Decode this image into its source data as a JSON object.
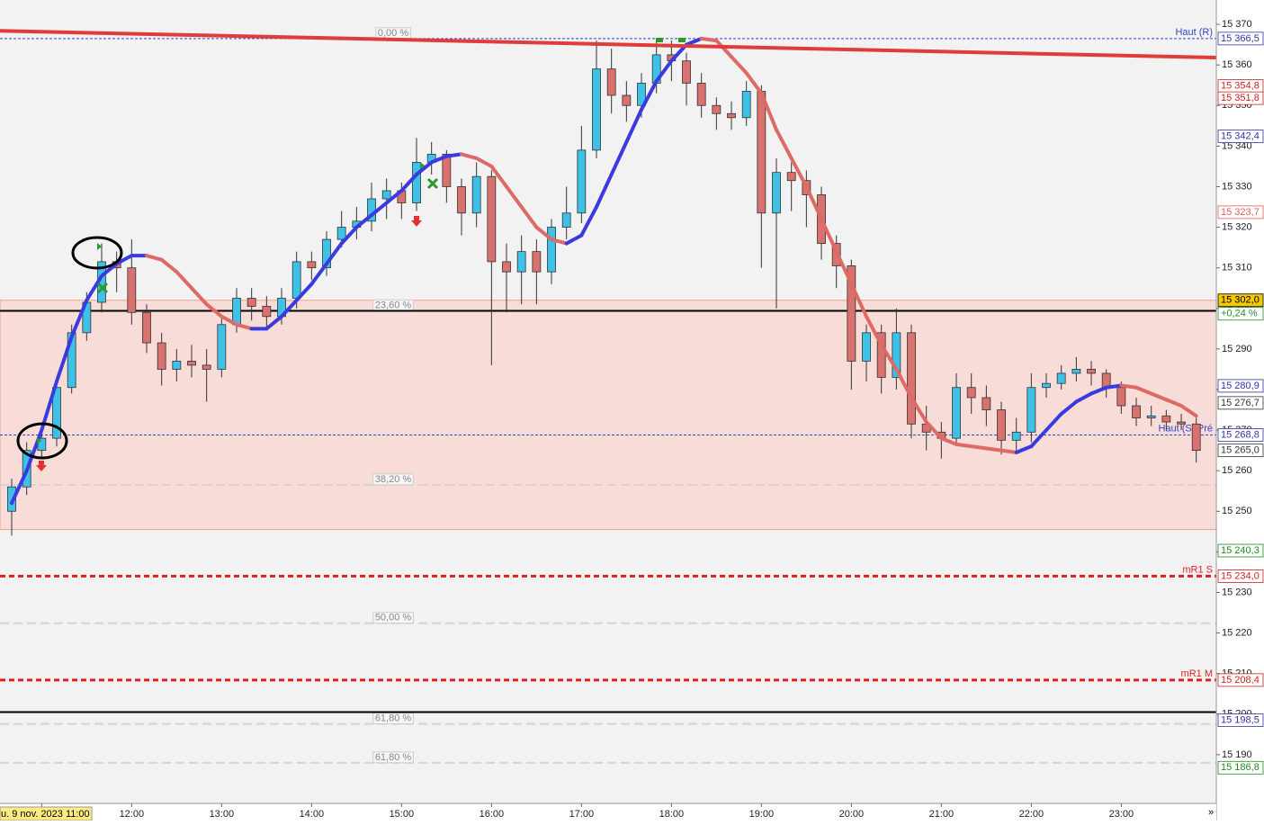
{
  "chart_data": {
    "type": "candlestick",
    "categories": [
      null,
      null,
      "u. 9 nov. 2023 11:00",
      null,
      null,
      null,
      null,
      null,
      "12:00",
      null,
      null,
      null,
      null,
      null,
      "13:00",
      null,
      null,
      null,
      null,
      null,
      "14:00",
      null,
      null,
      null,
      null,
      null,
      "15:00",
      null,
      null,
      null,
      null,
      null,
      "16:00",
      null,
      null,
      null,
      null,
      null,
      "17:00",
      null,
      null,
      null,
      null,
      null,
      "18:00",
      null,
      null,
      null,
      null,
      null,
      "19:00",
      null,
      null,
      null,
      null,
      null,
      "20:00",
      null,
      null,
      null,
      null,
      null,
      "21:00",
      null,
      null,
      null,
      null,
      null,
      "22:00",
      null,
      null,
      null,
      null,
      null,
      "23:00",
      null,
      null,
      null,
      null,
      null
    ],
    "candles": {
      "open": [
        15250,
        15256,
        15265,
        15268,
        15280.5,
        15294,
        15301.5,
        15311.5,
        15310,
        15299,
        15291.5,
        15285,
        15287,
        15286,
        15285,
        15296,
        15302.5,
        15300.5,
        15298,
        15302.5,
        15311.5,
        15310,
        15317,
        15320,
        15321.5,
        15327,
        15329,
        15326,
        15336,
        15338,
        15330,
        15323.5,
        15332.5,
        15311.5,
        15309,
        15314,
        15309,
        15320,
        15323.5,
        15339,
        15359,
        15352.5,
        15350,
        15355.5,
        15362.5,
        15361,
        15355.5,
        15350,
        15348,
        15347,
        15353.5,
        15323.5,
        15333.5,
        15331.5,
        15328,
        15316,
        15310.5,
        15287,
        15294,
        15283,
        15294,
        15271.5,
        15269.5,
        15268,
        15280.5,
        15278,
        15275,
        15267.5,
        15269.5,
        15280.5,
        15281.5,
        15284,
        15285,
        15284,
        15280.5,
        15276,
        15273,
        15273.5,
        15272,
        15271.5
      ],
      "high": [
        15258,
        15267,
        15271,
        15283,
        15296,
        15304,
        15316,
        15314,
        15317,
        15301,
        15294,
        15290,
        15291,
        15290,
        15298,
        15305,
        15305,
        15303,
        15305,
        15314,
        15314,
        15319,
        15324,
        15325,
        15331,
        15332,
        15331,
        15342,
        15341,
        15339,
        15332,
        15336,
        15334,
        15316,
        15318,
        15317,
        15322,
        15330,
        15345,
        15366,
        15364,
        15356,
        15358,
        15366.5,
        15366,
        15363,
        15358,
        15352,
        15351,
        15356,
        15355,
        15337,
        15336,
        15334,
        15330,
        15318,
        15312,
        15296,
        15296,
        15300,
        15296,
        15276,
        15272,
        15284,
        15284,
        15281,
        15277,
        15273,
        15284,
        15284,
        15286,
        15288,
        15287,
        15285,
        15282,
        15278,
        15276,
        15275,
        15274,
        15273
      ],
      "low": [
        15244,
        15254,
        15263,
        15266,
        15279,
        15292,
        15299,
        15304,
        15296,
        15289,
        15281,
        15282,
        15283,
        15277,
        15283,
        15294,
        15297,
        15295,
        15296,
        15300,
        15307,
        15308,
        15315,
        15317,
        15319,
        15322,
        15322,
        15324,
        15333,
        15326,
        15318,
        15320,
        15286,
        15299,
        15301,
        15301,
        15306,
        15317,
        15321,
        15337,
        15348,
        15346,
        15347,
        15353,
        15356,
        15350,
        15347,
        15344,
        15344,
        15345,
        15310,
        15300,
        15324,
        15320,
        15312,
        15305,
        15280,
        15282,
        15279,
        15280,
        15268,
        15265,
        15263,
        15266,
        15274,
        15271,
        15264,
        15265,
        15267,
        15278,
        15280,
        15282,
        15281,
        15278,
        15274,
        15271,
        15271,
        15270,
        15270,
        15262
      ],
      "close": [
        15256,
        15265,
        15268,
        15280.5,
        15294,
        15301.5,
        15311.5,
        15310,
        15299,
        15291.5,
        15285,
        15287,
        15286,
        15285,
        15296,
        15302.5,
        15300.5,
        15298,
        15302.5,
        15311.5,
        15310,
        15317,
        15320,
        15321.5,
        15327,
        15329,
        15326,
        15336,
        15338,
        15330,
        15323.5,
        15332.5,
        15311.5,
        15309,
        15314,
        15309,
        15320,
        15323.5,
        15339,
        15359,
        15352.5,
        15350,
        15355.5,
        15362.5,
        15361,
        15355.5,
        15350,
        15348,
        15347,
        15353.5,
        15323.5,
        15333.5,
        15331.5,
        15328,
        15316,
        15310.5,
        15287,
        15294,
        15283,
        15294,
        15271.5,
        15269.5,
        15268,
        15280.5,
        15278,
        15275,
        15267.5,
        15269.5,
        15280.5,
        15281.5,
        15284,
        15285,
        15284,
        15280.5,
        15276,
        15273,
        15273.5,
        15272,
        15271.5,
        15265
      ],
      "up_color": "#3ec1e6",
      "down_color": "#d9716f"
    },
    "moving_average": {
      "values": [
        15252,
        15260,
        15270,
        15282,
        15293,
        15302,
        15308,
        15311,
        15313,
        15313,
        15312,
        15309,
        15305,
        15301,
        15298,
        15296,
        15295,
        15295,
        15298,
        15302,
        15306,
        15311,
        15316,
        15320,
        15323,
        15326,
        15329,
        15333,
        15336,
        15337.5,
        15338,
        15337,
        15335,
        15330,
        15325,
        15320,
        15317,
        15316,
        15318,
        15325,
        15333,
        15341,
        15349,
        15356,
        15361,
        15365,
        15366.5,
        15366,
        15362,
        15358,
        15353,
        15344,
        15337,
        15330,
        15322,
        15314,
        15306,
        15298,
        15291,
        15285,
        15278,
        15272,
        15268,
        15266.5,
        15266,
        15265.5,
        15265,
        15264.5,
        15266,
        15270,
        15274,
        15277,
        15279,
        15280.5,
        15281,
        15280.5,
        15279,
        15277.5,
        15276,
        15273.5
      ],
      "rising_color": "#3a3ae0",
      "falling_color": "#de6a66"
    },
    "trendline": {
      "values": [
        15368.4,
        15361.8
      ],
      "color": "#e03c3c"
    },
    "zone": {
      "range": [
        15245.5,
        15302
      ],
      "color": "#f7dcd8"
    },
    "lines": [
      {
        "name": "Haut (R)",
        "value": 15366.5,
        "color": "#3344cc",
        "dash": "3,2",
        "width": 1
      },
      {
        "name": "Haut (S, Pré",
        "value": 15268.8,
        "color": "#3344cc",
        "dash": "3,2",
        "width": 1
      },
      {
        "name": "mR1 S",
        "value": 15234,
        "color": "#e02020",
        "dash": "6,4",
        "width": 3
      },
      {
        "name": "mR1 M",
        "value": 15208.4,
        "color": "#e02020",
        "dash": "6,4",
        "width": 3
      }
    ],
    "black_lines": [
      15299.4,
      15200.5
    ],
    "fibonacci": [
      {
        "label": "0,00 %",
        "value": 15366.5,
        "line": false
      },
      {
        "label": "23,60 %",
        "value": 15299.4,
        "line": false
      },
      {
        "label": "38,20 %",
        "value": 15256.5,
        "line": true
      },
      {
        "label": "50,00 %",
        "value": 15222.4,
        "line": true
      },
      {
        "label": "61,80 %",
        "value": 15197.6,
        "line": true
      },
      {
        "label": "61,80 %",
        "value": 15188,
        "line": true
      }
    ],
    "price_tags": [
      {
        "value": 15366.5,
        "label": "15 366,5",
        "color": "#3333aa"
      },
      {
        "value": 15354.8,
        "label": "15 354,8",
        "color": "#cc2222"
      },
      {
        "value": 15351.8,
        "label": "15 351,8",
        "color": "#cc2222"
      },
      {
        "value": 15342.4,
        "label": "15 342,4",
        "color": "#3333aa"
      },
      {
        "value": 15323.7,
        "label": "15 323,7",
        "color": "#e06060"
      },
      {
        "value": 15280.9,
        "label": "15 280,9",
        "color": "#3333aa"
      },
      {
        "value": 15276.7,
        "label": "15 276,7",
        "color": "#333333"
      },
      {
        "value": 15268.8,
        "label": "15 268,8",
        "color": "#3333aa"
      },
      {
        "value": 15265,
        "label": "15 265,0",
        "color": "#333333"
      },
      {
        "value": 15240.3,
        "label": "15 240,3",
        "color": "#228822"
      },
      {
        "value": 15234,
        "label": "15 234,0",
        "color": "#cc2222"
      },
      {
        "value": 15208.4,
        "label": "15 208,4",
        "color": "#cc2222"
      },
      {
        "value": 15198.5,
        "label": "15 198,5",
        "color": "#3333aa"
      },
      {
        "value": 15186.8,
        "label": "15 186,8",
        "color": "#228822"
      }
    ],
    "last_price": {
      "value": 15302,
      "label": "15 302,0"
    },
    "change": {
      "value": 0.24,
      "label": "+0,24 %"
    },
    "ylim": [
      15178,
      15376
    ],
    "yticks": [
      {
        "value": 15190,
        "label": "15 190"
      },
      {
        "value": 15200,
        "label": "15 200"
      },
      {
        "value": 15210,
        "label": "15 210"
      },
      {
        "value": 15220,
        "label": "15 220"
      },
      {
        "value": 15230,
        "label": "15 230"
      },
      {
        "value": 15240,
        "label": "15 240"
      },
      {
        "value": 15250,
        "label": "15 250"
      },
      {
        "value": 15260,
        "label": "15 260"
      },
      {
        "value": 15270,
        "label": "15 270"
      },
      {
        "value": 15280,
        "label": "15 280"
      },
      {
        "value": 15290,
        "label": "15 290"
      },
      {
        "value": 15300,
        "label": "15 300"
      },
      {
        "value": 15310,
        "label": "15 310"
      },
      {
        "value": 15320,
        "label": "15 320"
      },
      {
        "value": 15330,
        "label": "15 330"
      },
      {
        "value": 15340,
        "label": "15 340"
      },
      {
        "value": 15350,
        "label": "15 350"
      },
      {
        "value": 15360,
        "label": "15 360"
      },
      {
        "value": 15370,
        "label": "15 370"
      }
    ]
  }
}
